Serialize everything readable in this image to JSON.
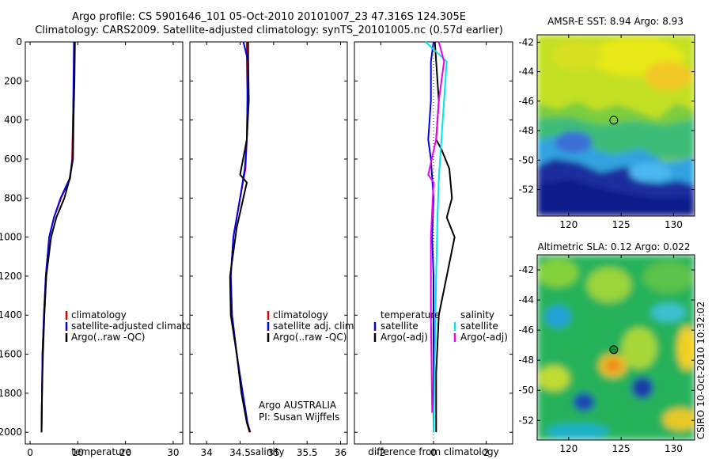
{
  "title": {
    "line1": "Argo profile: CS 5901646_101 05-Oct-2010 20101007_23 47.316S 124.305E",
    "line2": "Climatology: CARS2009. Satellite-adjusted climatology: synTS_20101005.nc (0.57d earlier)"
  },
  "colors": {
    "climatology": "#dd0000",
    "satellite": "#0000ee",
    "argo": "#000000",
    "salinity_sat": "#00e5ee",
    "salinity_argo": "#ee00ee"
  },
  "chart_data": [
    {
      "type": "line",
      "id": "temperature",
      "xlabel": "temperature",
      "ylabel": "",
      "xlim": [
        -1,
        32
      ],
      "ylim": [
        2060,
        0
      ],
      "xticks": [
        0,
        10,
        20,
        30
      ],
      "yticks": [
        0,
        200,
        400,
        600,
        800,
        1000,
        1200,
        1400,
        1600,
        1800,
        2000
      ],
      "legend": {
        "placement": "lower-right",
        "entries": [
          "climatology",
          "satellite-adjusted climatology",
          "Argo(..raw -QC)"
        ]
      },
      "series": [
        {
          "name": "climatology",
          "color": "#dd0000",
          "x": [
            9.3,
            9.2,
            9.0,
            8.8,
            8.4,
            6.5,
            5.0,
            4.0,
            3.3,
            2.9,
            2.6,
            2.5,
            2.4
          ],
          "y": [
            0,
            200,
            400,
            600,
            700,
            800,
            900,
            1000,
            1200,
            1400,
            1600,
            1800,
            2000
          ]
        },
        {
          "name": "satellite-adjusted climatology",
          "color": "#0000ee",
          "x": [
            9.2,
            9.1,
            9.0,
            8.9,
            8.3,
            6.4,
            5.0,
            4.0,
            3.3,
            2.9,
            2.6,
            2.5,
            2.4
          ],
          "y": [
            0,
            200,
            400,
            600,
            700,
            800,
            900,
            1000,
            1200,
            1400,
            1600,
            1800,
            2000
          ]
        },
        {
          "name": "Argo(..raw -QC)",
          "color": "#000000",
          "x": [
            9.4,
            9.3,
            9.1,
            9.0,
            8.3,
            7.2,
            5.5,
            4.4,
            3.4,
            3.0,
            2.7,
            2.5,
            2.4
          ],
          "y": [
            0,
            200,
            400,
            600,
            700,
            800,
            900,
            1000,
            1200,
            1400,
            1600,
            1800,
            2000
          ]
        }
      ]
    },
    {
      "type": "line",
      "id": "salinity",
      "xlabel": "salinity",
      "ylabel": "",
      "xlim": [
        33.75,
        36.1
      ],
      "ylim": [
        2060,
        0
      ],
      "xticks": [
        34,
        34.5,
        35,
        35.5,
        36
      ],
      "xticklabels": [
        "34",
        "34.5",
        "35",
        "35.5",
        "36"
      ],
      "legend": {
        "placement": "lower-right",
        "entries": [
          "climatology",
          "satellite adj. clim.",
          "Argo(..raw -QC)"
        ]
      },
      "annotation": [
        "Argo AUSTRALIA",
        "PI: Susan Wijffels"
      ],
      "series": [
        {
          "name": "climatology",
          "color": "#dd0000",
          "x": [
            34.6,
            34.6,
            34.61,
            34.6,
            34.58,
            34.5,
            34.4,
            34.36,
            34.38,
            34.45,
            34.53,
            34.6,
            34.64
          ],
          "y": [
            0,
            100,
            300,
            500,
            650,
            800,
            1000,
            1200,
            1400,
            1600,
            1800,
            1950,
            2000
          ]
        },
        {
          "name": "satellite adj. clim.",
          "color": "#0000ee",
          "x": [
            34.55,
            34.62,
            34.61,
            34.6,
            34.57,
            34.5,
            34.4,
            34.36,
            34.38,
            34.45,
            34.54,
            34.61,
            34.65
          ],
          "y": [
            0,
            100,
            300,
            500,
            650,
            800,
            1000,
            1200,
            1400,
            1600,
            1800,
            1950,
            2000
          ]
        },
        {
          "name": "Argo(..raw -QC)",
          "color": "#000000",
          "x": [
            34.62,
            34.62,
            34.63,
            34.6,
            34.5,
            34.6,
            34.45,
            34.35,
            34.36,
            34.45,
            34.52,
            34.6,
            34.65
          ],
          "y": [
            0,
            100,
            300,
            500,
            680,
            720,
            950,
            1200,
            1400,
            1600,
            1800,
            1950,
            2000
          ]
        }
      ]
    },
    {
      "type": "line",
      "id": "difference",
      "xlabel": "difference from climatology",
      "ylabel": "",
      "xlim": [
        -3,
        3
      ],
      "ylim": [
        2060,
        0
      ],
      "xticks": [
        -2,
        0,
        2
      ],
      "legend": {
        "placement": "lower-right",
        "headers": [
          "temperature",
          "salinity"
        ],
        "entries": [
          "satellite",
          "Argo(-adj)",
          "satellite",
          "Argo(-adj)"
        ]
      },
      "series": [
        {
          "name": "satellite",
          "group": "temperature",
          "color": "#0000ee",
          "x": [
            0.0,
            -0.1,
            -0.1,
            -0.2,
            -0.1,
            0.0,
            -0.05,
            0.0,
            0.0,
            0.0
          ],
          "y": [
            0,
            100,
            300,
            500,
            600,
            800,
            1000,
            1200,
            1600,
            2000
          ]
        },
        {
          "name": "Argo(-adj)",
          "group": "temperature",
          "color": "#000000",
          "x": [
            0.05,
            0.1,
            0.2,
            0.1,
            0.3,
            0.6,
            0.7,
            0.5,
            0.8,
            0.5,
            0.2,
            0.1,
            0.1
          ],
          "y": [
            0,
            100,
            300,
            500,
            550,
            650,
            800,
            900,
            1000,
            1200,
            1400,
            1700,
            2000
          ]
        },
        {
          "name": "satellite",
          "group": "salinity",
          "color": "#00e5ee",
          "x": [
            -0.3,
            0.5,
            0.4,
            0.3,
            0.2,
            0.15,
            0.1,
            0.05,
            0.0
          ],
          "y": [
            0,
            100,
            300,
            500,
            700,
            900,
            1200,
            1600,
            2000
          ]
        },
        {
          "name": "Argo(-adj)",
          "group": "salinity",
          "color": "#ee00ee",
          "x": [
            0.2,
            0.4,
            0.2,
            0.1,
            -0.2,
            0.0,
            -0.1,
            -0.1,
            -0.05
          ],
          "y": [
            0,
            100,
            300,
            500,
            680,
            720,
            1000,
            1400,
            1900
          ]
        }
      ]
    },
    {
      "type": "heatmap",
      "id": "sst",
      "title": "AMSR-E SST: 8.94  Argo: 8.93",
      "xlim": [
        117,
        132
      ],
      "ylim": [
        -53.8,
        -41.5
      ],
      "xticks": [
        120,
        125,
        130
      ],
      "yticks": [
        -42,
        -44,
        -46,
        -48,
        -50,
        -52
      ],
      "marker": {
        "x": 124.3,
        "y": -47.3
      }
    },
    {
      "type": "heatmap",
      "id": "sla",
      "title": "Altimetric SLA: 0.12  Argo: 0.022",
      "xlim": [
        117,
        132
      ],
      "ylim": [
        -53.3,
        -41.0
      ],
      "xticks": [
        120,
        125,
        130
      ],
      "yticks": [
        -42,
        -44,
        -46,
        -48,
        -50,
        -52
      ],
      "marker": {
        "x": 124.3,
        "y": -47.3
      }
    }
  ],
  "side_label": "CSIRO 10-Oct-2010 10:32:02"
}
